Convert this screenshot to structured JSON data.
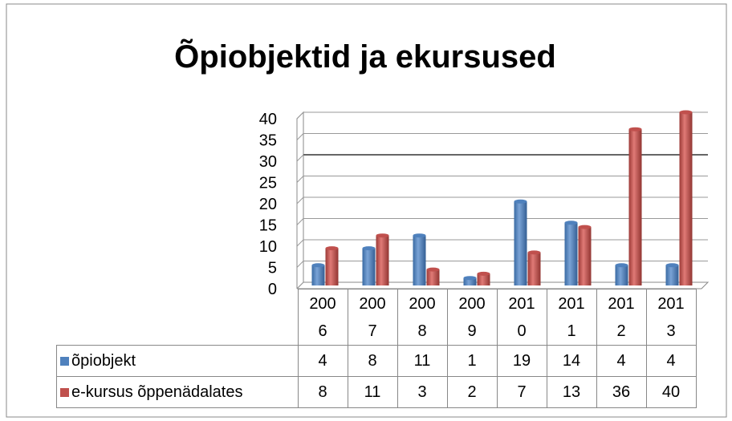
{
  "chart_data": {
    "type": "bar",
    "title": "Õpiobjektid ja ekursused",
    "categories": [
      "2006",
      "2007",
      "2008",
      "2009",
      "2010",
      "2011",
      "2012",
      "2013"
    ],
    "series": [
      {
        "name": "õpiobjekt",
        "color": "#4f81bd",
        "values": [
          4,
          8,
          11,
          1,
          19,
          14,
          4,
          4
        ]
      },
      {
        "name": "e-kursus õppenädalates",
        "color": "#c0504d",
        "values": [
          8,
          11,
          3,
          2,
          7,
          13,
          36,
          40
        ]
      }
    ],
    "ylim": [
      0,
      40
    ],
    "yticks": [
      0,
      5,
      10,
      15,
      20,
      25,
      30,
      35,
      40
    ],
    "grid": true,
    "data_table": true
  }
}
